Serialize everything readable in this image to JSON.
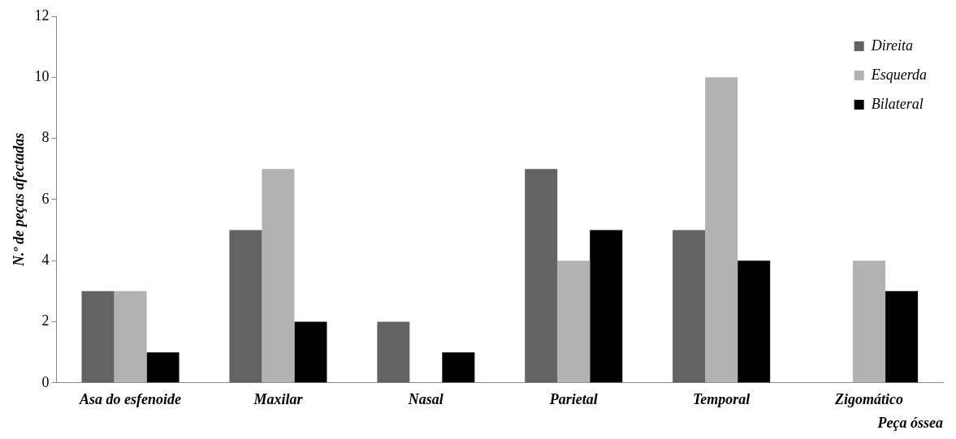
{
  "chart_data": {
    "type": "bar",
    "xlabel": "Peça óssea",
    "ylabel": "N.º de peças afectadas",
    "categories": [
      "Asa do esfenoide",
      "Maxilar",
      "Nasal",
      "Parietal",
      "Temporal",
      "Zigomático"
    ],
    "series": [
      {
        "name": "Direita",
        "color": "#636363",
        "values": [
          3,
          5,
          2,
          7,
          5,
          0
        ]
      },
      {
        "name": "Esquerda",
        "color": "#b2b2b2",
        "values": [
          3,
          7,
          0,
          4,
          10,
          4
        ]
      },
      {
        "name": "Bilateral",
        "color": "#000000",
        "values": [
          1,
          2,
          1,
          5,
          4,
          3
        ]
      }
    ],
    "ylim": [
      0,
      12
    ],
    "yticks": [
      0,
      2,
      4,
      6,
      8,
      10,
      12
    ],
    "grid": false,
    "legend": "top right"
  }
}
